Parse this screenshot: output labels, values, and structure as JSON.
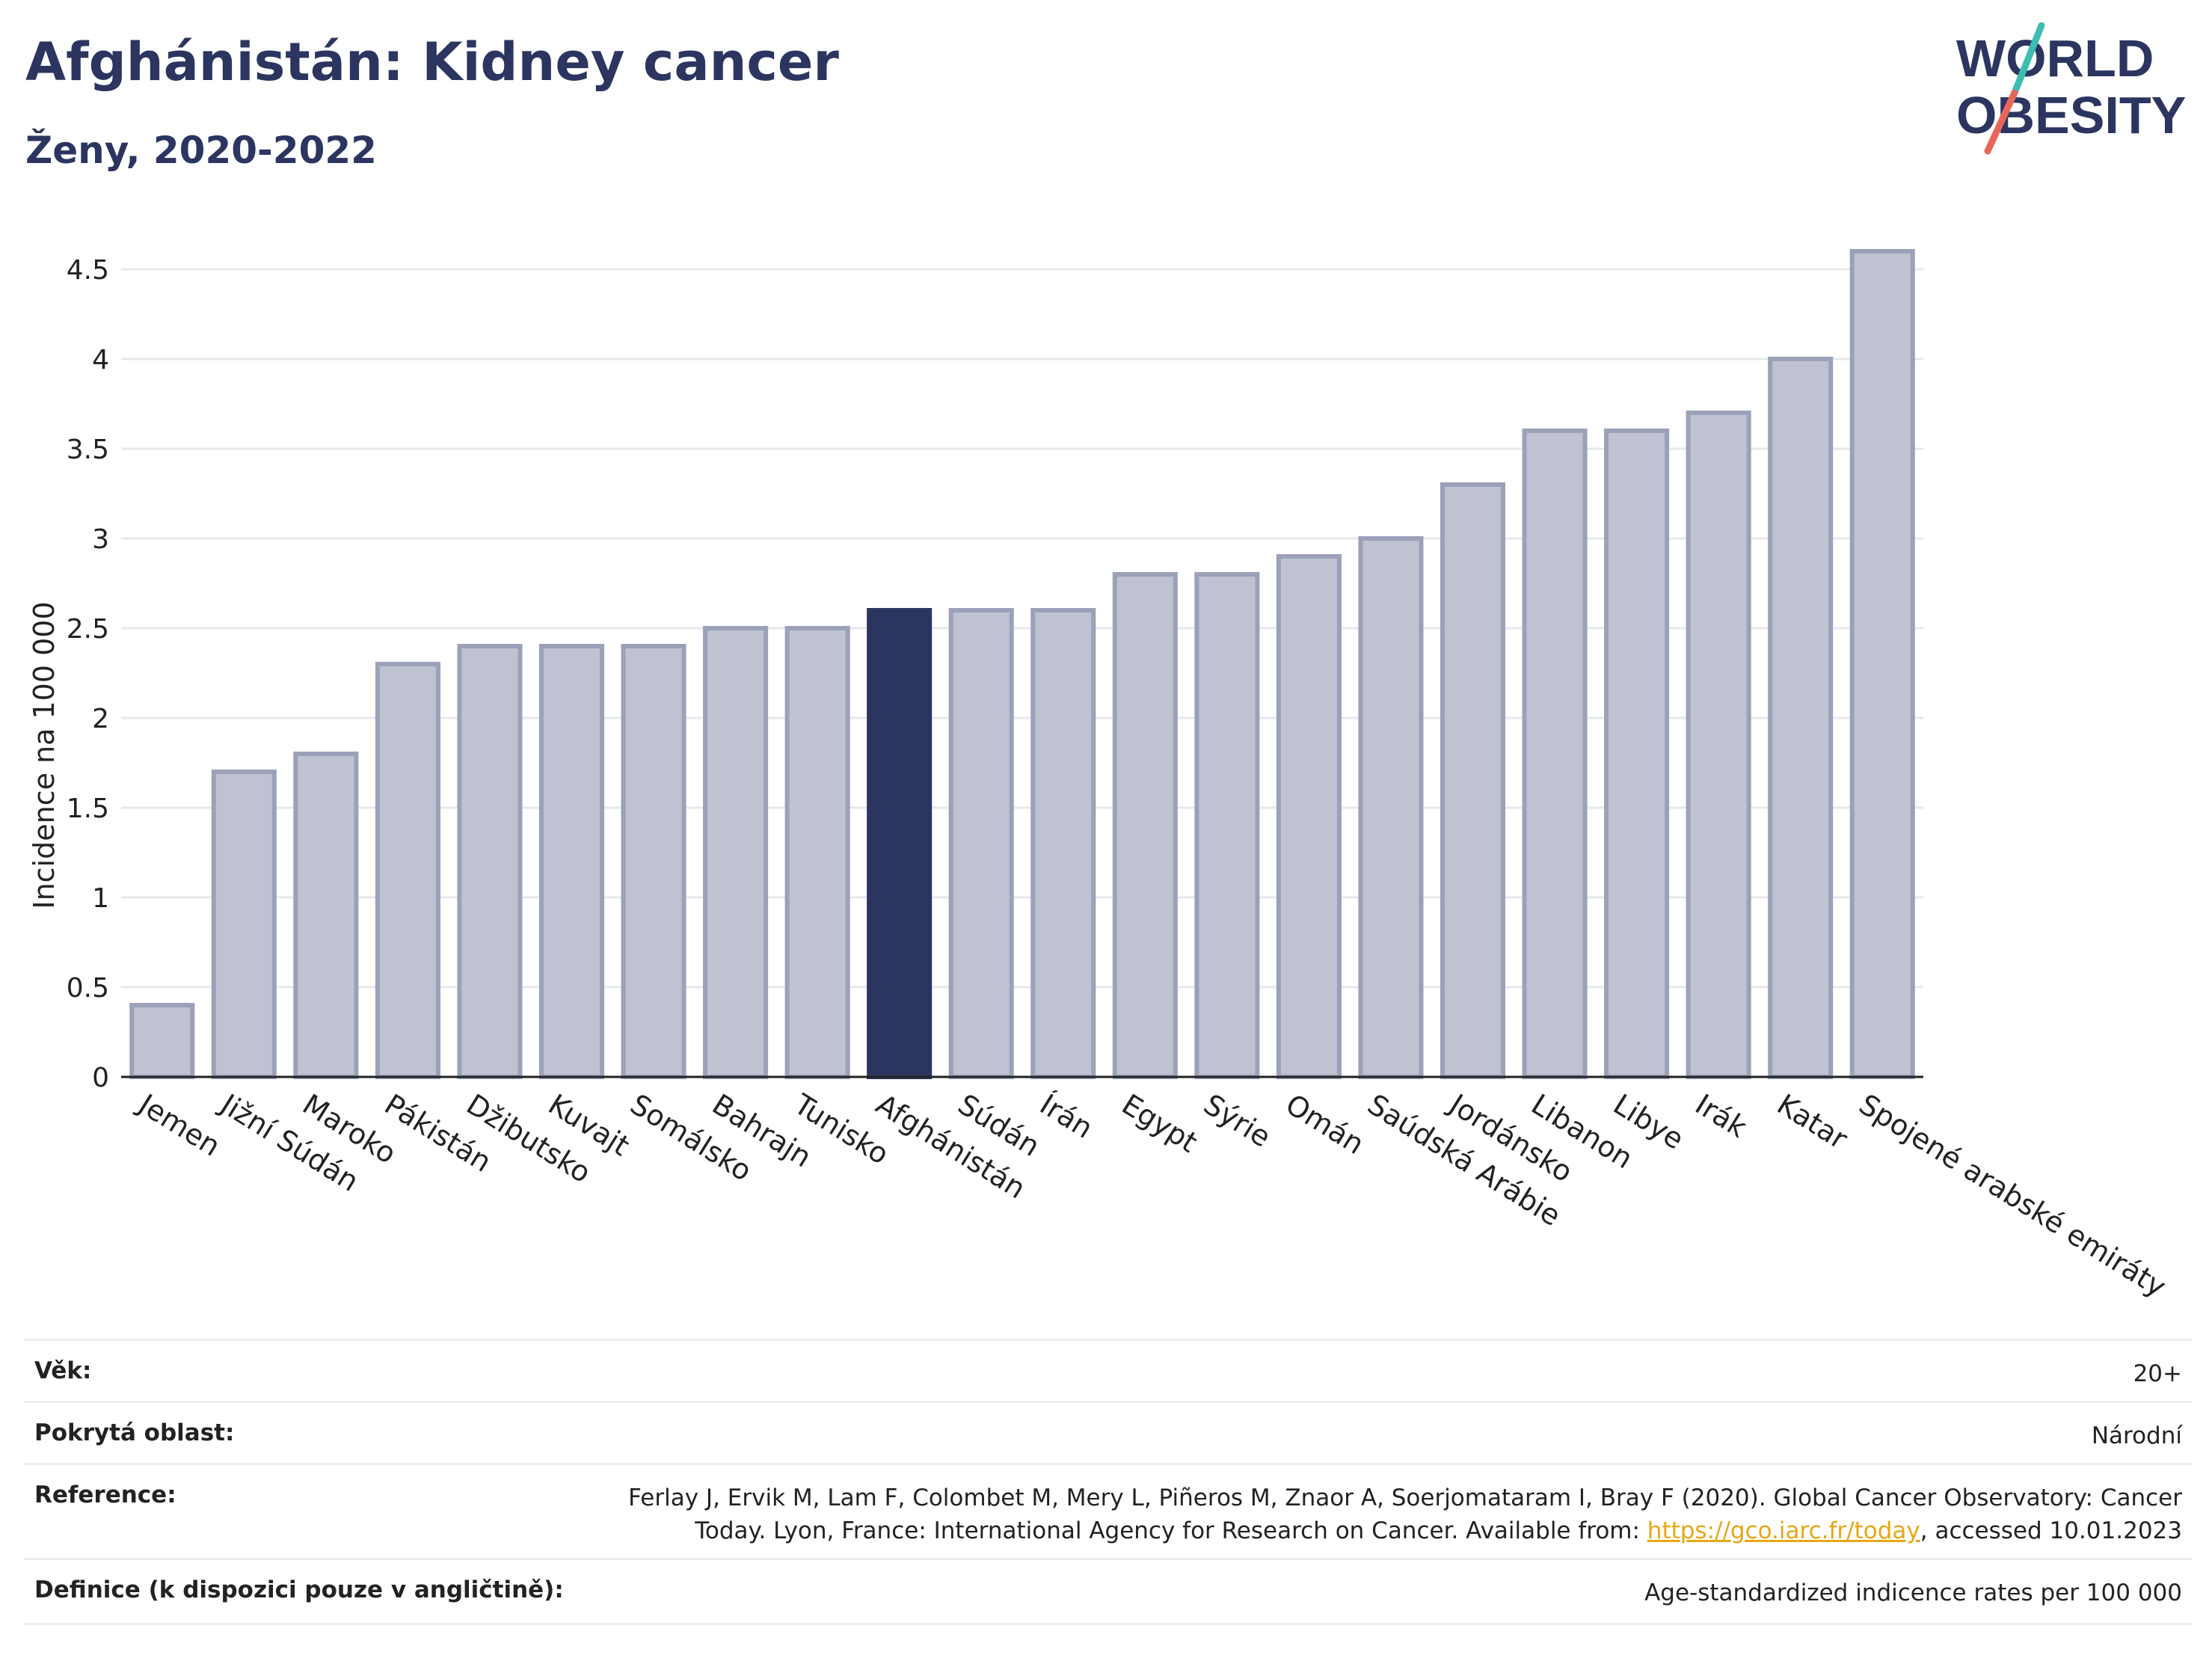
{
  "header": {
    "title": "Afghánistán: Kidney cancer",
    "subtitle": "Ženy, 2020-2022"
  },
  "logo": {
    "line1": "WORLD",
    "line2": "OBESITY",
    "colors": {
      "text": "#2b3560",
      "slash_teal": "#3dbdb0",
      "slash_red": "#e8675a"
    }
  },
  "chart_data": {
    "type": "bar",
    "ylabel": "Incidence na 100 000",
    "ylim": [
      0,
      4.75
    ],
    "yticks": [
      0,
      0.5,
      1,
      1.5,
      2,
      2.5,
      3,
      3.5,
      4,
      4.5
    ],
    "ytick_labels": [
      "0",
      "0.5",
      "1",
      "1.5",
      "2",
      "2.5",
      "3",
      "3.5",
      "4",
      "4.5"
    ],
    "grid": true,
    "highlight": "Afghánistán",
    "colors": {
      "bar": "#bfc2d0",
      "bar_border": "#9ba1b8",
      "highlight": "#2b3560",
      "grid": "#e6e8ee",
      "axis": "#222222"
    },
    "categories": [
      "Jemen",
      "Jižní Súdán",
      "Maroko",
      "Pákistán",
      "Džibutsko",
      "Kuvajt",
      "Somálsko",
      "Bahrajn",
      "Tunisko",
      "Afghánistán",
      "Súdán",
      "Írán",
      "Egypt",
      "Sýrie",
      "Omán",
      "Saúdská Arábie",
      "Jordánsko",
      "Libanon",
      "Libye",
      "Irák",
      "Katar",
      "Spojené arabské emiráty"
    ],
    "values": [
      0.4,
      1.7,
      1.8,
      2.3,
      2.4,
      2.4,
      2.4,
      2.5,
      2.5,
      2.6,
      2.6,
      2.6,
      2.8,
      2.8,
      2.9,
      3.0,
      3.3,
      3.6,
      3.6,
      3.7,
      4.0,
      4.6
    ]
  },
  "meta": {
    "rows": [
      {
        "label": "Věk:",
        "value": "20+"
      },
      {
        "label": "Pokrytá oblast:",
        "value": "Národní"
      },
      {
        "label": "Reference:",
        "value_line1": "Ferlay J, Ervik M, Lam F, Colombet M, Mery L, Piñeros M, Znaor A, Soerjomataram I, Bray F (2020). Global Cancer Observatory: Cancer",
        "value_pre": "Today. Lyon, France: International Agency for Research on Cancer. Available from: ",
        "value_link": "https://gco.iarc.fr/today",
        "value_post": ", accessed 10.01.2023"
      },
      {
        "label": "Definice (k dispozici pouze v angličtině):",
        "value": "Age-standardized indicence rates per 100 000"
      }
    ]
  }
}
